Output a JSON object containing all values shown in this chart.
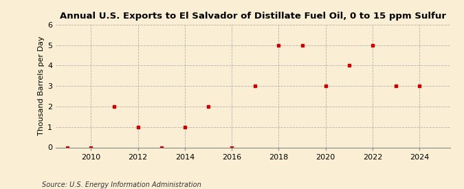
{
  "title": "Annual U.S. Exports to El Salvador of Distillate Fuel Oil, 0 to 15 ppm Sulfur",
  "ylabel": "Thousand Barrels per Day",
  "source_text": "Source: U.S. Energy Information Administration",
  "background_color": "#faefd4",
  "years": [
    2009,
    2010,
    2011,
    2012,
    2013,
    2014,
    2015,
    2016,
    2017,
    2018,
    2019,
    2020,
    2021,
    2022,
    2023,
    2024
  ],
  "values": [
    0,
    0,
    2,
    1,
    0,
    1,
    2,
    0,
    3,
    5,
    5,
    3,
    4,
    5,
    3,
    3
  ],
  "marker_color": "#cc0000",
  "marker_size": 3.5,
  "xlim": [
    2008.5,
    2025.3
  ],
  "ylim": [
    0,
    6
  ],
  "yticks": [
    0,
    1,
    2,
    3,
    4,
    5,
    6
  ],
  "xticks": [
    2010,
    2012,
    2014,
    2016,
    2018,
    2020,
    2022,
    2024
  ],
  "grid_color": "#aaaaaa",
  "title_fontsize": 9.5,
  "ylabel_fontsize": 8,
  "source_fontsize": 7,
  "tick_fontsize": 8
}
